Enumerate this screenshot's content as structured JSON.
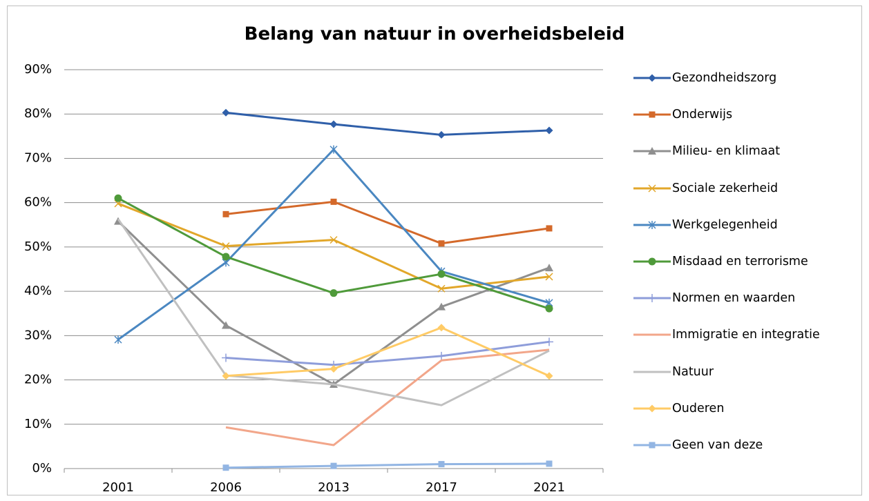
{
  "chart_data": {
    "type": "line",
    "title": "Belang van natuur in overheidsbeleid",
    "categories": [
      "2001",
      "2006",
      "2013",
      "2017",
      "2021"
    ],
    "ylim": [
      0,
      0.9
    ],
    "yticks": [
      {
        "value": 0,
        "label": "0%"
      },
      {
        "value": 0.1,
        "label": "10%"
      },
      {
        "value": 0.2,
        "label": "20%"
      },
      {
        "value": 0.3,
        "label": "30%"
      },
      {
        "value": 0.4,
        "label": "40%"
      },
      {
        "value": 0.5,
        "label": "50%"
      },
      {
        "value": 0.6,
        "label": "60%"
      },
      {
        "value": 0.7,
        "label": "70%"
      },
      {
        "value": 0.8,
        "label": "80%"
      },
      {
        "value": 0.9,
        "label": "90%"
      }
    ],
    "grid": true,
    "legend": "right",
    "series": [
      {
        "name": "Gezondheidszorg",
        "color": "#2f5fa9",
        "marker": "diamond",
        "values": [
          null,
          0.803,
          0.777,
          0.753,
          0.763
        ]
      },
      {
        "name": "Onderwijs",
        "color": "#d4692a",
        "marker": "square",
        "values": [
          null,
          0.574,
          0.602,
          0.508,
          0.542
        ]
      },
      {
        "name": "Milieu- en klimaat",
        "color": "#8f8f8f",
        "marker": "triangle",
        "values": [
          0.558,
          0.323,
          0.19,
          0.365,
          0.453
        ]
      },
      {
        "name": "Sociale zekerheid",
        "color": "#e2a72a",
        "marker": "x",
        "values": [
          0.598,
          0.502,
          0.516,
          0.406,
          0.433
        ]
      },
      {
        "name": "Werkgelegenheid",
        "color": "#4a87c1",
        "marker": "star",
        "values": [
          0.291,
          0.465,
          0.72,
          0.445,
          0.374
        ]
      },
      {
        "name": "Misdaad en terrorisme",
        "color": "#4f9a3a",
        "marker": "circle",
        "values": [
          0.61,
          0.478,
          0.396,
          0.439,
          0.361
        ]
      },
      {
        "name": "Normen en waarden",
        "color": "#8e9dda",
        "marker": "plus",
        "values": [
          null,
          0.25,
          0.234,
          0.254,
          0.286
        ]
      },
      {
        "name": "Immigratie en integratie",
        "color": "#f2a68a",
        "marker": "none",
        "values": [
          null,
          0.093,
          0.053,
          0.244,
          0.268
        ]
      },
      {
        "name": "Natuur",
        "color": "#c0c0c0",
        "marker": "none",
        "values": [
          0.563,
          0.21,
          0.19,
          0.143,
          0.266
        ]
      },
      {
        "name": "Ouderen",
        "color": "#ffcb66",
        "marker": "diamond",
        "values": [
          null,
          0.209,
          0.225,
          0.318,
          0.209
        ]
      },
      {
        "name": "Geen van deze",
        "color": "#92b5e3",
        "marker": "square",
        "values": [
          null,
          0.002,
          0.006,
          0.01,
          0.011
        ]
      }
    ]
  }
}
